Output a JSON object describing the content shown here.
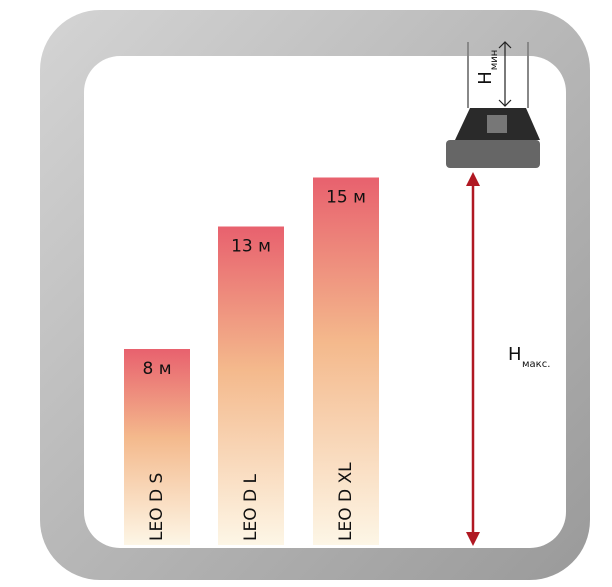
{
  "chart_data": {
    "type": "bar",
    "categories": [
      "LEO D S",
      "LEO D L",
      "LEO D XL"
    ],
    "values": [
      8,
      13,
      15
    ],
    "value_labels": [
      "8 м",
      "13 м",
      "15 м"
    ],
    "color": "#e8616e",
    "annotations": [
      {
        "text": "H",
        "sub": "макс."
      },
      {
        "text": "H",
        "sub": "мин"
      }
    ]
  }
}
